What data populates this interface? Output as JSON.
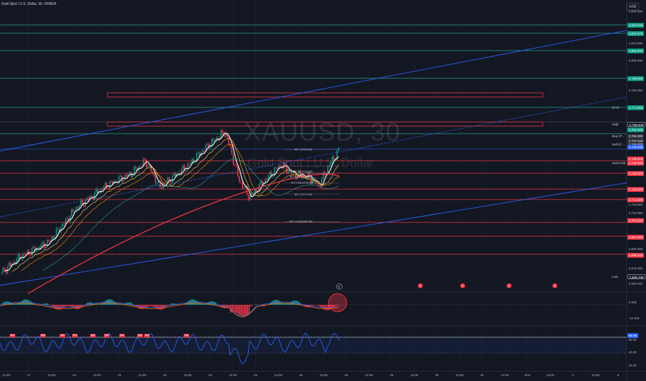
{
  "header": {
    "symbol_title": "Gold Spot / U.S. Dollar, 30, OANDA",
    "currency": "USD"
  },
  "watermark": {
    "main": "XAUUSD, 30",
    "sub": "Gold Spot / U.S. Dollar"
  },
  "colors": {
    "background": "#131722",
    "green_line": "#26a69a",
    "red_line": "#f23645",
    "blue_line": "#2962ff",
    "candle_up": "#089981",
    "candle_down": "#f23645"
  },
  "price_axis": {
    "ticks": [
      "2,830.000",
      "2,810.000",
      "2,800.000",
      "2,780.000",
      "2,720.000",
      "2,710.000",
      "2,690.000",
      "2,670.000",
      "2,660.000"
    ]
  },
  "price_pills": [
    {
      "text": "2,823.020",
      "kind": "green"
    },
    {
      "text": "2,816.070",
      "kind": "green"
    },
    {
      "text": "2,806.000",
      "kind": "green"
    },
    {
      "text": "2,788.000",
      "kind": "green"
    },
    {
      "text": "2,771.000",
      "kind": "green",
      "name": "2771"
    },
    {
      "text": "2,758.525",
      "kind": "outline",
      "name": "High"
    },
    {
      "text": "2,754.000",
      "kind": "green"
    },
    {
      "text": "2,752.000",
      "kind": "dark",
      "name": "Buy 27..."
    },
    {
      "text": "2,747.215",
      "kind": "dark"
    },
    {
      "text": "2,745.000",
      "kind": "dark",
      "name": "Sell 27..."
    },
    {
      "text": "2,746.580",
      "kind": "blue"
    },
    {
      "text": "2,738.010",
      "kind": "red"
    },
    {
      "text": "2,736.000",
      "kind": "red",
      "name": "Sell 2738"
    },
    {
      "text": "2,728.000",
      "kind": "red"
    },
    {
      "text": "2,720.000",
      "kind": "red"
    },
    {
      "text": "2,714.020",
      "kind": "red"
    },
    {
      "text": "2,702.020",
      "kind": "red"
    },
    {
      "text": "2,691.000",
      "kind": "red"
    },
    {
      "text": "2,680.020",
      "kind": "red"
    },
    {
      "text": "2,666.795",
      "kind": "outline",
      "name": "Low"
    }
  ],
  "fib_labels": [
    "NET 1 (2746.100)",
    "NET 0.5 (2732.325)",
    "NET 0.382 (2729.050)",
    "NET 0.236 (2725.000)",
    "NET 0 (2717.100)",
    "NET -0.618 (2699.760)"
  ],
  "macd_axis": {
    "ticks": [
      "0.000",
      "-10.000"
    ]
  },
  "rsi_axis": {
    "ticks": [
      "60.00",
      "40.00",
      "20.00"
    ],
    "pill": "68.89"
  },
  "flags": {
    "label": "Sell",
    "count": 10
  },
  "events": [
    "E",
    "E",
    "E",
    "E",
    "E"
  ],
  "time_axis": {
    "ticks": [
      "12:00",
      "17",
      "12:00",
      "18",
      "12:00",
      "21",
      "12:00",
      "22",
      "12:00",
      "23",
      "12:00",
      "24",
      "12:00",
      "25",
      "12:00",
      "28",
      "12:00",
      "29",
      "12:00",
      "30",
      "12:00",
      "31",
      "12:00",
      "Nov",
      "12:00",
      "4",
      "12:00",
      "5"
    ]
  }
}
